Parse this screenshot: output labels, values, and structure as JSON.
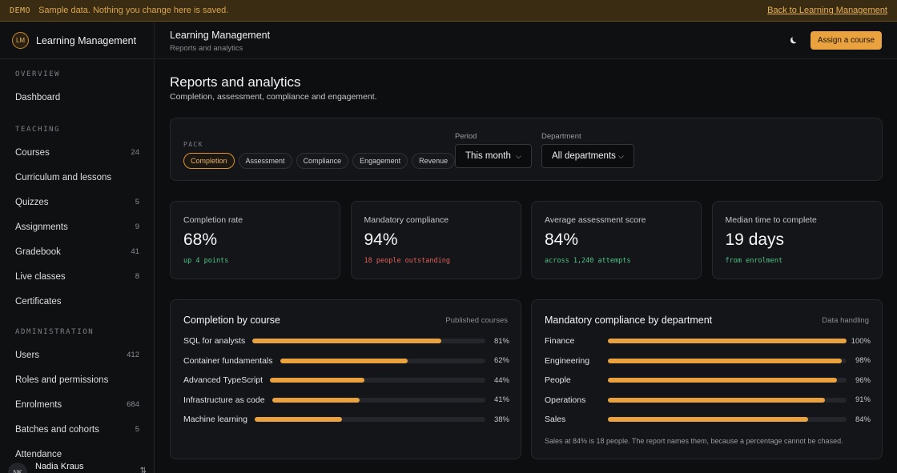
{
  "banner": {
    "tag": "DEMO",
    "message": "Sample data. Nothing you change here is saved.",
    "back_link": "Back to Learning Management"
  },
  "brand": {
    "logo": "LM",
    "name": "Learning Management"
  },
  "sidebar": {
    "sections": [
      {
        "title": "OVERVIEW",
        "items": [
          {
            "label": "Dashboard",
            "count": ""
          }
        ]
      },
      {
        "title": "TEACHING",
        "items": [
          {
            "label": "Courses",
            "count": "24"
          },
          {
            "label": "Curriculum and lessons",
            "count": ""
          },
          {
            "label": "Quizzes",
            "count": "5"
          },
          {
            "label": "Assignments",
            "count": "9"
          },
          {
            "label": "Gradebook",
            "count": "41"
          },
          {
            "label": "Live classes",
            "count": "8"
          },
          {
            "label": "Certificates",
            "count": ""
          }
        ]
      },
      {
        "title": "ADMINISTRATION",
        "items": [
          {
            "label": "Users",
            "count": "412"
          },
          {
            "label": "Roles and permissions",
            "count": ""
          },
          {
            "label": "Enrolments",
            "count": "684"
          },
          {
            "label": "Batches and cohorts",
            "count": "5"
          },
          {
            "label": "Attendance",
            "count": ""
          }
        ]
      }
    ],
    "user": {
      "initials": "NK",
      "name": "Nadia Kraus"
    }
  },
  "header": {
    "title": "Learning Management",
    "subtitle": "Reports and analytics",
    "assign_button": "Assign a course"
  },
  "page": {
    "title": "Reports and analytics",
    "subtitle": "Completion, assessment, compliance and engagement."
  },
  "filters": {
    "pack_label": "PACK",
    "packs": [
      "Completion",
      "Assessment",
      "Compliance",
      "Engagement",
      "Revenue"
    ],
    "active_pack": "Completion",
    "period": {
      "label": "Period",
      "value": "This month"
    },
    "department": {
      "label": "Department",
      "value": "All departments"
    }
  },
  "kpis": [
    {
      "label": "Completion rate",
      "value": "68%",
      "note": "up 4 points",
      "tone": "good"
    },
    {
      "label": "Mandatory compliance",
      "value": "94%",
      "note": "18 people outstanding",
      "tone": "bad"
    },
    {
      "label": "Average assessment score",
      "value": "84%",
      "note": "across 1,240 attempts",
      "tone": "good"
    },
    {
      "label": "Median time to complete",
      "value": "19 days",
      "note": "from enrolment",
      "tone": "good"
    }
  ],
  "completion_panel": {
    "title": "Completion by course",
    "meta": "Published courses",
    "rows": [
      {
        "label": "SQL for analysts",
        "value": 81,
        "pct": "81%"
      },
      {
        "label": "Container fundamentals",
        "value": 62,
        "pct": "62%"
      },
      {
        "label": "Advanced TypeScript",
        "value": 44,
        "pct": "44%"
      },
      {
        "label": "Infrastructure as code",
        "value": 41,
        "pct": "41%"
      },
      {
        "label": "Machine learning",
        "value": 38,
        "pct": "38%"
      }
    ]
  },
  "compliance_panel": {
    "title": "Mandatory compliance by department",
    "meta": "Data handling",
    "rows": [
      {
        "label": "Finance",
        "value": 100,
        "pct": "100%"
      },
      {
        "label": "Engineering",
        "value": 98,
        "pct": "98%"
      },
      {
        "label": "People",
        "value": 96,
        "pct": "96%"
      },
      {
        "label": "Operations",
        "value": 91,
        "pct": "91%"
      },
      {
        "label": "Sales",
        "value": 84,
        "pct": "84%"
      }
    ],
    "footnote": "Sales at 84% is 18 people. The report names them, because a percentage cannot be chased."
  },
  "colors": {
    "accent": "#e9a23d",
    "good": "#4fc489",
    "bad": "#e0605a"
  },
  "icons": {
    "theme_toggle": "moon-icon",
    "user_menu": "chevron-updown-icon",
    "select_chevron": "chevron-down-icon"
  }
}
